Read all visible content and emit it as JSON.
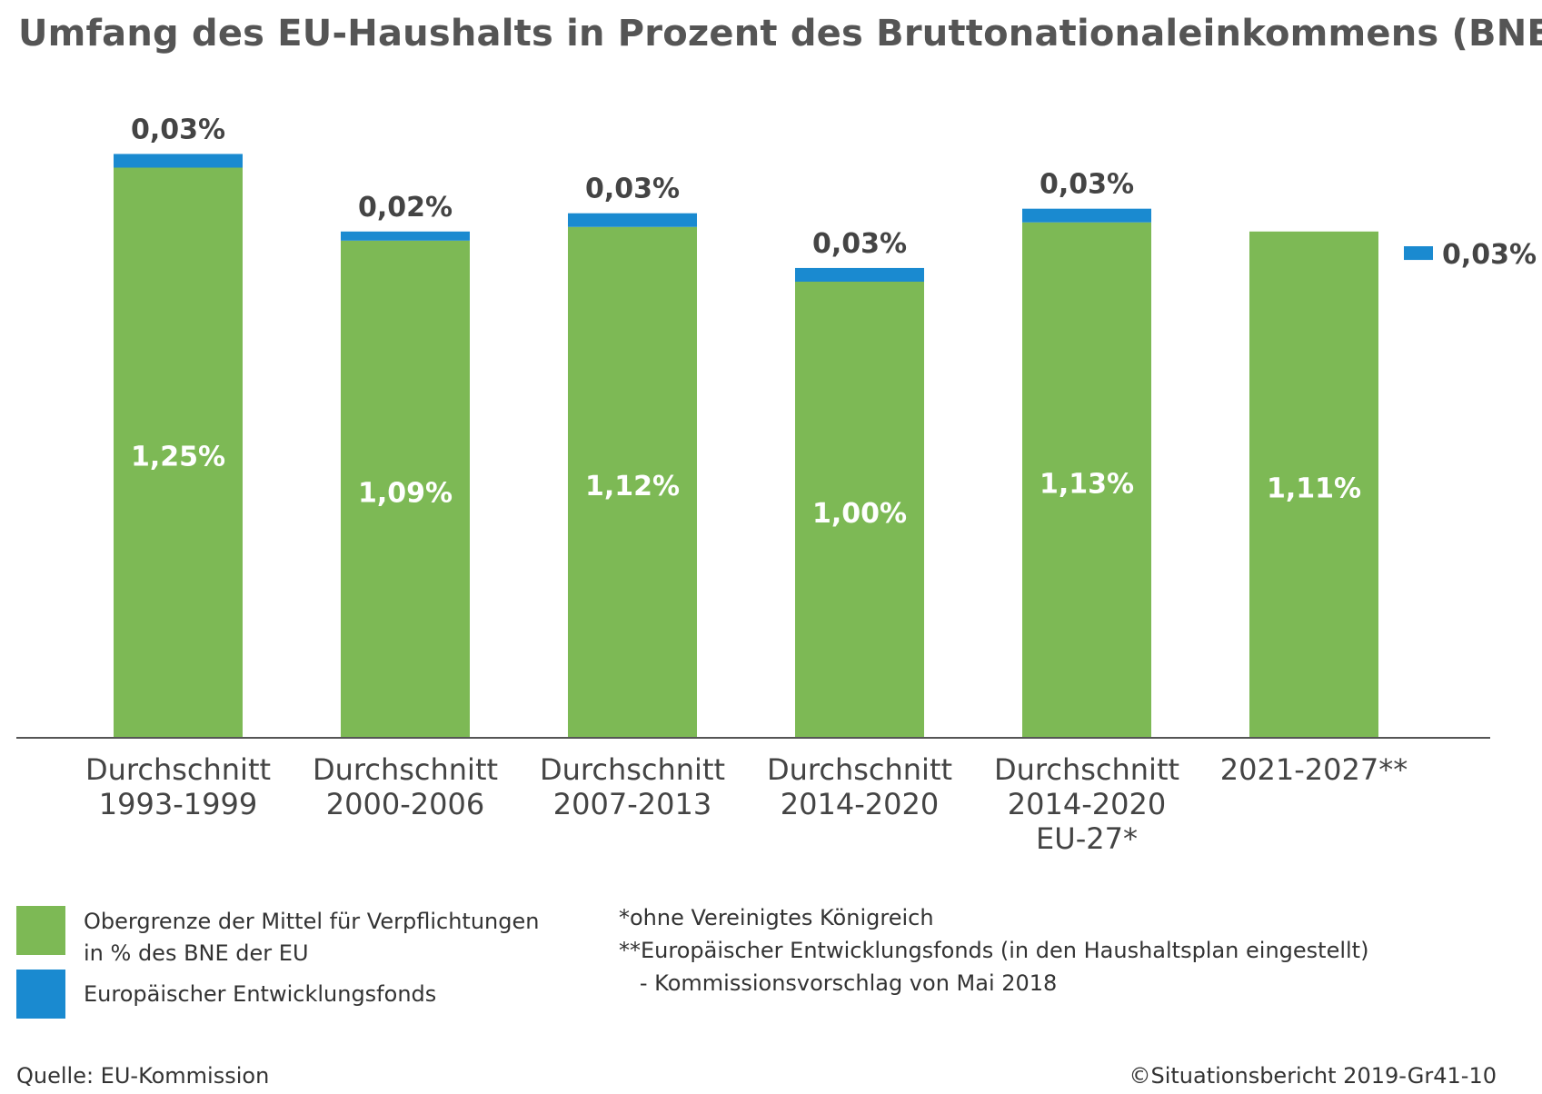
{
  "title": "Umfang des EU-Haushalts in Prozent des Bruttonationaleinkommens (BNE)",
  "chart_data": {
    "type": "bar",
    "stacked": true,
    "categories": [
      [
        "Durchschnitt",
        "1993-1999"
      ],
      [
        "Durchschnitt",
        "2000-2006"
      ],
      [
        "Durchschnitt",
        "2007-2013"
      ],
      [
        "Durchschnitt",
        "2014-2020"
      ],
      [
        "Durchschnitt",
        "2014-2020",
        "EU-27*"
      ],
      [
        "2021-2027**"
      ]
    ],
    "series": [
      {
        "name": "Obergrenze der Mittel für Verpflichtungen in % des BNE der EU",
        "color": "#7db955",
        "values": [
          1.25,
          1.09,
          1.12,
          1.0,
          1.13,
          1.11
        ],
        "labels": [
          "1,25%",
          "1,09%",
          "1,12%",
          "1,00%",
          "1,13%",
          "1,11%"
        ]
      },
      {
        "name": "Europäischer Entwicklungsfonds",
        "color": "#1a8ad0",
        "values": [
          0.03,
          0.02,
          0.03,
          0.03,
          0.03,
          0.03
        ],
        "labels": [
          "0,03%",
          "0,02%",
          "0,03%",
          "0,03%",
          "0,03%",
          "0,03%"
        ],
        "note": "For 2021-2027 the 0,03% is shown as a separate marker beside the bar"
      }
    ],
    "ylim": [
      0,
      1.3
    ],
    "grid": false,
    "legend": "bottom-left"
  },
  "legend": [
    {
      "label": "Obergrenze der Mittel für Verpflichtungen\nin % des BNE der EU",
      "color": "#7db955"
    },
    {
      "label": "Europäischer Entwicklungsfonds",
      "color": "#1a8ad0"
    }
  ],
  "notes": [
    "*ohne Vereinigtes Königreich",
    "**Europäischer Entwicklungsfonds (in den Haushaltsplan eingestellt)",
    "   - Kommissionsvorschlag von Mai 2018"
  ],
  "source": "Quelle: EU-Kommission",
  "copyright": "©Situationsbericht 2019-Gr41-10"
}
